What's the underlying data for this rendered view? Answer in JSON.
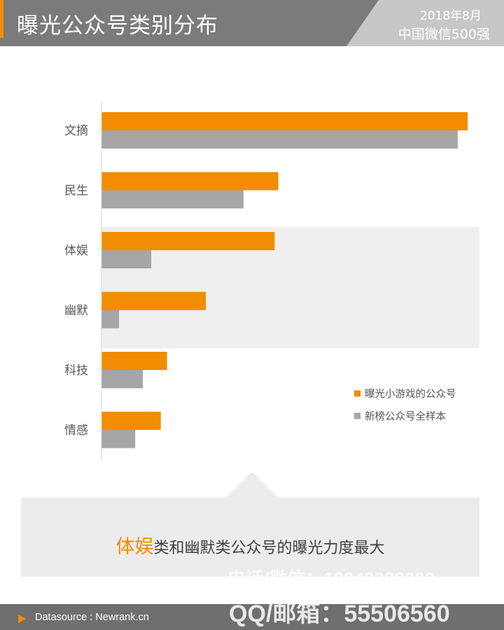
{
  "header": {
    "title": "曝光公众号类别分布",
    "date": "2018年8月",
    "subtitle": "中国微信500强"
  },
  "colors": {
    "accent": "#f28c00",
    "secondary": "#a6a6a6",
    "header_bg": "#7b7b7b",
    "band": "#efefef"
  },
  "chart_data": {
    "type": "bar",
    "orientation": "horizontal",
    "categories": [
      "文摘",
      "民生",
      "体娱",
      "幽默",
      "科技",
      "情感"
    ],
    "series": [
      {
        "name": "曝光小游戏的公众号",
        "color": "#f28c00",
        "values": [
          100,
          48.3,
          47.3,
          28.5,
          17.9,
          16.2
        ]
      },
      {
        "name": "新榜公众号全样本",
        "color": "#a6a6a6",
        "values": [
          97.3,
          38.8,
          13.6,
          4.8,
          11.3,
          9.2
        ]
      }
    ],
    "highlighted_categories": [
      "体娱",
      "幽默"
    ],
    "xlim": [
      0,
      100
    ],
    "grid": false,
    "legend_position": "right"
  },
  "callout": {
    "highlight": "体娱",
    "text": "类和幽默类公众号的曝光力度最大"
  },
  "footer": {
    "source": "Datasource : Newrank.cn"
  },
  "watermark": {
    "line1": "电话/微信：18940288003",
    "line2": "QQ/邮箱：55506560"
  }
}
